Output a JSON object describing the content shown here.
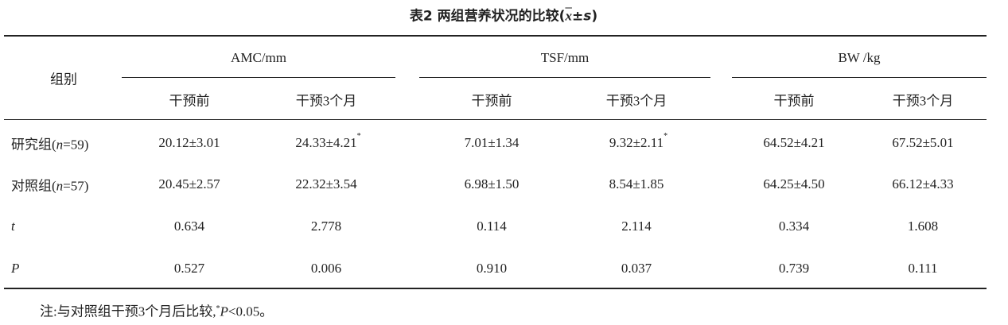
{
  "title": {
    "prefix": "表2  两组营养状况的比较(",
    "mean": "x",
    "pm": "±",
    "sd": "s",
    "suffix": ")"
  },
  "table": {
    "corner": "组别",
    "groups": [
      "AMC/mm",
      "TSF/mm",
      "BW /kg"
    ],
    "subheaders": [
      "干预前",
      "干预3个月",
      "干预前",
      "干预3个月",
      "干预前",
      "干预3个月"
    ],
    "rows": [
      {
        "label": {
          "pre": "研究组(",
          "var": "n",
          "post": "=59)"
        },
        "cells": [
          {
            "text": "20.12±3.01"
          },
          {
            "text": "24.33±4.21",
            "mark": "*"
          },
          {
            "text": "7.01±1.34"
          },
          {
            "text": "9.32±2.11",
            "mark": "*"
          },
          {
            "text": "64.52±4.21"
          },
          {
            "text": "67.52±5.01"
          }
        ]
      },
      {
        "label": {
          "pre": "对照组(",
          "var": "n",
          "post": "=57)"
        },
        "cells": [
          {
            "text": "20.45±2.57"
          },
          {
            "text": "22.32±3.54"
          },
          {
            "text": "6.98±1.50"
          },
          {
            "text": "8.54±1.85"
          },
          {
            "text": "64.25±4.50"
          },
          {
            "text": "66.12±4.33"
          }
        ]
      },
      {
        "label": {
          "var": "t"
        },
        "cells": [
          {
            "text": "0.634"
          },
          {
            "text": "2.778"
          },
          {
            "text": "0.114"
          },
          {
            "text": "2.114"
          },
          {
            "text": "0.334"
          },
          {
            "text": "1.608"
          }
        ]
      },
      {
        "label": {
          "var": "P"
        },
        "cells": [
          {
            "text": "0.527"
          },
          {
            "text": "0.006"
          },
          {
            "text": "0.910"
          },
          {
            "text": "0.037"
          },
          {
            "text": "0.739"
          },
          {
            "text": "0.111"
          }
        ]
      }
    ]
  },
  "note": {
    "prefix": "注:与对照组干预3个月后比较,",
    "mark": "*",
    "var": "P",
    "suffix": "<0.05。"
  }
}
